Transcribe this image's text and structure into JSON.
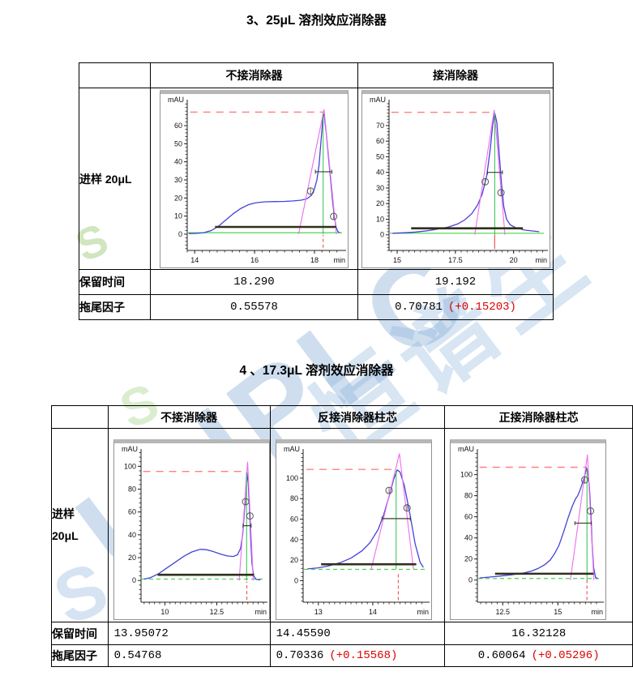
{
  "watermark": {
    "brand": "UHPLC",
    "cjk": "恒谱生",
    "reg": "®",
    "swoosh": "S"
  },
  "sections": [
    {
      "title": "3、25μL 溶剂效应消除器",
      "table": {
        "columns": [
          "不接消除器",
          "接消除器"
        ],
        "row_label": "进样 20μL",
        "retention_label": "保留时间",
        "tailing_label": "拖尾因子",
        "retention_values": [
          "18.290",
          "19.192"
        ],
        "tailing_values": [
          {
            "base": "0.55578",
            "delta": ""
          },
          {
            "base": "0.70781",
            "delta": "(+0.15203)"
          }
        ]
      }
    },
    {
      "title": "4 、17.3μL 溶剂效应消除器",
      "table": {
        "columns": [
          "不接消除器",
          "反接消除器柱芯",
          "正接消除器柱芯"
        ],
        "row_label_lines": [
          "进样",
          "20μL"
        ],
        "retention_label": "保留时间",
        "tailing_label": "拖尾因子",
        "retention_values": [
          "13.95072",
          "14.45590",
          "16.32128"
        ],
        "tailing_values": [
          {
            "base": "0.54768",
            "delta": ""
          },
          {
            "base": "0.70336",
            "delta": "(+0.15568)"
          },
          {
            "base": "0.60064",
            "delta": "(+0.05296)"
          }
        ]
      }
    }
  ],
  "chart_data": [
    {
      "type": "line",
      "name": "25ul-no-eliminator",
      "title": "不接消除器",
      "ylabel": "mAU",
      "xlabel": "min",
      "x_range": [
        13.75,
        18.92
      ],
      "y_range": [
        -9,
        73
      ],
      "x_ticks": [
        14,
        16,
        18
      ],
      "y_ticks": [
        0,
        10,
        20,
        30,
        40,
        50,
        60
      ],
      "x_div": 8,
      "retention_time": 18.29,
      "tailing_factor": 0.55578,
      "peak_height_mAU": 67,
      "curve": [
        [
          13.8,
          0.3
        ],
        [
          14.05,
          0.4
        ],
        [
          14.3,
          0.8
        ],
        [
          14.55,
          2
        ],
        [
          14.8,
          4.5
        ],
        [
          15.05,
          8
        ],
        [
          15.3,
          11.5
        ],
        [
          15.55,
          14.3
        ],
        [
          15.8,
          16.3
        ],
        [
          16.05,
          17.4
        ],
        [
          16.35,
          17.9
        ],
        [
          16.7,
          18
        ],
        [
          17.0,
          18.1
        ],
        [
          17.3,
          18.4
        ],
        [
          17.55,
          18.8
        ],
        [
          17.75,
          19.6
        ],
        [
          17.9,
          21.5
        ],
        [
          18.0,
          25
        ],
        [
          18.08,
          30
        ],
        [
          18.15,
          38
        ],
        [
          18.21,
          50
        ],
        [
          18.26,
          60
        ],
        [
          18.29,
          67
        ],
        [
          18.33,
          65
        ],
        [
          18.4,
          55
        ],
        [
          18.47,
          42
        ],
        [
          18.54,
          30
        ],
        [
          18.6,
          19
        ],
        [
          18.66,
          10
        ],
        [
          18.72,
          4
        ],
        [
          18.78,
          1.5
        ],
        [
          18.85,
          0.7
        ]
      ],
      "tangent": [
        [
          17.47,
          0
        ],
        [
          18.32,
          69
        ],
        [
          18.73,
          0
        ]
      ],
      "red_h": {
        "y": 67.5,
        "x1": 13.85,
        "x2": 18.3
      },
      "red_v": {
        "x": 18.29,
        "y1": -7.5,
        "y2": -0.5,
        "dashed": true
      },
      "green_h": {
        "y": 0.8,
        "dashed": false
      },
      "green_v": {
        "x": 18.29,
        "y1": 0,
        "y2": 66.5
      },
      "half_line": {
        "y": 34.5,
        "x1": 18.03,
        "x2": 18.58
      },
      "base_line": {
        "y": 4,
        "x1": 14.68,
        "x2": 18.72
      },
      "markers": [
        [
          17.87,
          23.8
        ],
        [
          18.64,
          9.8
        ]
      ]
    },
    {
      "type": "line",
      "name": "25ul-with-eliminator",
      "title": "接消除器",
      "ylabel": "mAU",
      "xlabel": "min",
      "x_range": [
        14.65,
        21.3
      ],
      "y_range": [
        -10,
        85
      ],
      "x_ticks": [
        15,
        17.5,
        20
      ],
      "y_ticks": [
        0,
        10,
        20,
        30,
        40,
        50,
        60,
        70
      ],
      "x_div": 10,
      "retention_time": 19.192,
      "tailing_factor": 0.70781,
      "peak_height_mAU": 78,
      "curve": [
        [
          14.8,
          1
        ],
        [
          15.3,
          1.3
        ],
        [
          15.8,
          1.8
        ],
        [
          16.3,
          2.6
        ],
        [
          16.8,
          3.8
        ],
        [
          17.2,
          5
        ],
        [
          17.6,
          7
        ],
        [
          17.9,
          9.5
        ],
        [
          18.2,
          13.5
        ],
        [
          18.45,
          19
        ],
        [
          18.65,
          26
        ],
        [
          18.85,
          38
        ],
        [
          19.0,
          55
        ],
        [
          19.1,
          70
        ],
        [
          19.19,
          78
        ],
        [
          19.28,
          72
        ],
        [
          19.38,
          52
        ],
        [
          19.48,
          33
        ],
        [
          19.58,
          18
        ],
        [
          19.7,
          10
        ],
        [
          19.85,
          6.5
        ],
        [
          20.1,
          4.5
        ],
        [
          20.5,
          3
        ],
        [
          21.1,
          2
        ]
      ],
      "tangent": [
        [
          18.33,
          0
        ],
        [
          19.17,
          80
        ],
        [
          19.63,
          0
        ]
      ],
      "red_h": {
        "y": 78.5,
        "x1": 14.75,
        "x2": 19.19
      },
      "red_v": {
        "x": 19.19,
        "y1": -9,
        "y2": 0,
        "dashed": false
      },
      "green_h": {
        "y": 1,
        "dashed": false
      },
      "green_v": {
        "x": 19.19,
        "y1": 0,
        "y2": 77.5
      },
      "half_line": {
        "y": 40,
        "x1": 18.88,
        "x2": 19.52
      },
      "base_line": {
        "y": 4.2,
        "x1": 15.6,
        "x2": 20.4
      },
      "markers": [
        [
          18.78,
          34
        ],
        [
          19.46,
          27
        ]
      ]
    },
    {
      "type": "line",
      "name": "17.3ul-no-eliminator",
      "title": "不接消除器",
      "ylabel": "mAU",
      "xlabel": "min",
      "x_range": [
        8.85,
        14.75
      ],
      "y_range": [
        -19,
        113
      ],
      "x_ticks": [
        10,
        12.5
      ],
      "y_ticks": [
        0,
        20,
        40,
        60,
        80,
        100
      ],
      "x_div": 10,
      "retention_time": 13.95072,
      "tailing_factor": 0.54768,
      "peak_height_mAU": 95,
      "curve": [
        [
          9.0,
          1.2
        ],
        [
          9.3,
          2.5
        ],
        [
          9.7,
          6
        ],
        [
          10.1,
          11
        ],
        [
          10.5,
          16
        ],
        [
          10.9,
          21
        ],
        [
          11.3,
          25
        ],
        [
          11.7,
          27.3
        ],
        [
          12.0,
          27
        ],
        [
          12.3,
          25.5
        ],
        [
          12.7,
          23
        ],
        [
          13.0,
          21.5
        ],
        [
          13.3,
          21
        ],
        [
          13.5,
          22.5
        ],
        [
          13.65,
          28
        ],
        [
          13.75,
          40
        ],
        [
          13.85,
          65
        ],
        [
          13.95,
          95
        ],
        [
          14.02,
          85
        ],
        [
          14.08,
          62
        ],
        [
          14.14,
          35
        ],
        [
          14.2,
          15
        ],
        [
          14.28,
          4
        ],
        [
          14.4,
          1
        ],
        [
          14.6,
          0.5
        ]
      ],
      "tangent": [
        [
          13.58,
          0
        ],
        [
          13.99,
          104
        ],
        [
          14.26,
          0
        ]
      ],
      "red_h": {
        "y": 95.5,
        "x1": 8.95,
        "x2": 13.95
      },
      "red_v": {
        "x": 13.95,
        "y1": -17,
        "y2": -1,
        "dashed": true
      },
      "green_h": {
        "y": 1.2,
        "dashed": true
      },
      "green_v": {
        "x": 13.94,
        "y1": 0,
        "y2": 94.5
      },
      "half_line": {
        "y": 48,
        "x1": 13.77,
        "x2": 14.16
      },
      "base_line": {
        "y": 5,
        "x1": 9.65,
        "x2": 14.3
      },
      "markers": [
        [
          13.89,
          69
        ],
        [
          14.1,
          56.5
        ]
      ]
    },
    {
      "type": "line",
      "name": "17.3ul-reverse-cartridge",
      "title": "反接消除器柱芯",
      "ylabel": "mAU",
      "xlabel": "min",
      "x_range": [
        12.72,
        14.97
      ],
      "y_range": [
        -21,
        126
      ],
      "x_ticks": [
        13,
        14
      ],
      "y_ticks": [
        0,
        20,
        40,
        60,
        80,
        100
      ],
      "x_div": 10,
      "retention_time": 14.4559,
      "tailing_factor": 0.70336,
      "peak_height_mAU": 108,
      "curve": [
        [
          12.8,
          11.5
        ],
        [
          13.0,
          12.5
        ],
        [
          13.2,
          14.5
        ],
        [
          13.4,
          17.5
        ],
        [
          13.6,
          22
        ],
        [
          13.8,
          29
        ],
        [
          13.95,
          37
        ],
        [
          14.1,
          50
        ],
        [
          14.2,
          64
        ],
        [
          14.3,
          82
        ],
        [
          14.38,
          98
        ],
        [
          14.45,
          108
        ],
        [
          14.5,
          106
        ],
        [
          14.58,
          93
        ],
        [
          14.68,
          66
        ],
        [
          14.78,
          36
        ],
        [
          14.87,
          18
        ],
        [
          14.93,
          13
        ]
      ],
      "tangent": [
        [
          13.97,
          11
        ],
        [
          14.49,
          124
        ],
        [
          14.75,
          11
        ]
      ],
      "red_h": {
        "y": 108.5,
        "x1": 12.78,
        "x2": 14.45
      },
      "red_v": {
        "x": 14.47,
        "y1": -19,
        "y2": 8,
        "dashed": true
      },
      "green_h": {
        "y": 11,
        "dashed": true
      },
      "green_v": {
        "x": 14.43,
        "y1": 11,
        "y2": 107
      },
      "half_line": {
        "y": 60.5,
        "x1": 14.17,
        "x2": 14.69
      },
      "base_line": {
        "y": 16,
        "x1": 13.05,
        "x2": 14.8
      },
      "markers": [
        [
          14.3,
          88
        ],
        [
          14.63,
          71
        ]
      ]
    },
    {
      "type": "line",
      "name": "17.3ul-forward-cartridge",
      "title": "正接消除器柱芯",
      "ylabel": "mAU",
      "xlabel": "min",
      "x_range": [
        11.35,
        16.9
      ],
      "y_range": [
        -21,
        122
      ],
      "x_ticks": [
        12.5,
        15
      ],
      "y_ticks": [
        0,
        20,
        40,
        60,
        80,
        100
      ],
      "x_div": 10,
      "retention_time": 16.32128,
      "tailing_factor": 0.60064,
      "peak_height_mAU": 106,
      "curve": [
        [
          11.45,
          2
        ],
        [
          11.9,
          2.8
        ],
        [
          12.4,
          3.8
        ],
        [
          12.9,
          5
        ],
        [
          13.4,
          6.5
        ],
        [
          13.8,
          8.5
        ],
        [
          14.1,
          11
        ],
        [
          14.4,
          14.5
        ],
        [
          14.65,
          19
        ],
        [
          14.85,
          25
        ],
        [
          15.05,
          33
        ],
        [
          15.25,
          45
        ],
        [
          15.45,
          58
        ],
        [
          15.65,
          70
        ],
        [
          15.8,
          77
        ],
        [
          15.9,
          80
        ],
        [
          16.0,
          85
        ],
        [
          16.1,
          91
        ],
        [
          16.2,
          98
        ],
        [
          16.3,
          106
        ],
        [
          16.36,
          103
        ],
        [
          16.43,
          88
        ],
        [
          16.5,
          62
        ],
        [
          16.56,
          32
        ],
        [
          16.62,
          12
        ],
        [
          16.7,
          3
        ],
        [
          16.8,
          1.2
        ]
      ],
      "tangent": [
        [
          15.57,
          0
        ],
        [
          16.34,
          119
        ],
        [
          16.63,
          0
        ]
      ],
      "red_h": {
        "y": 107,
        "x1": 11.45,
        "x2": 16.3
      },
      "red_v": {
        "x": 16.32,
        "y1": -19,
        "y2": 0,
        "dashed": true
      },
      "green_h": {
        "y": 1.5,
        "dashed": true
      },
      "green_v": {
        "x": 16.32,
        "y1": 0,
        "y2": 105.5
      },
      "half_line": {
        "y": 54,
        "x1": 15.77,
        "x2": 16.52
      },
      "base_line": {
        "y": 6,
        "x1": 12.15,
        "x2": 16.62
      },
      "markers": [
        [
          16.22,
          95
        ],
        [
          16.48,
          65.5
        ]
      ]
    }
  ]
}
